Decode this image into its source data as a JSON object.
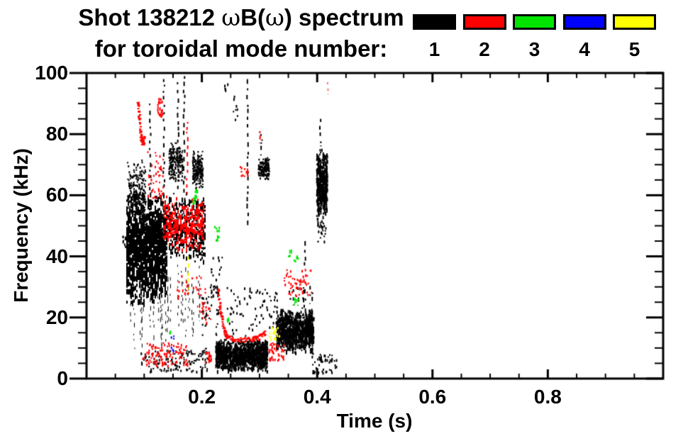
{
  "title": {
    "part1": "Shot 138212 ",
    "omega": "ω",
    "part2": "B(",
    "omega2": "ω",
    "part3": ") spectrum"
  },
  "subtitle": "for toroidal mode number:",
  "legend": {
    "items": [
      {
        "label": "1",
        "color": "#000000"
      },
      {
        "label": "2",
        "color": "#ff0000"
      },
      {
        "label": "3",
        "color": "#00e400"
      },
      {
        "label": "4",
        "color": "#0000ff"
      },
      {
        "label": "5",
        "color": "#ffff00"
      }
    ]
  },
  "chart_data": {
    "type": "scatter",
    "title": "Shot 138212 ωB(ω) spectrum for toroidal mode number: 1 2 3 4 5",
    "xlabel": "Time (s)",
    "ylabel": "Frequency (kHz)",
    "x_range": [
      0.0,
      1.0
    ],
    "y_range": [
      0,
      100
    ],
    "x_ticks": [
      {
        "v": 0.2,
        "label": "0.2"
      },
      {
        "v": 0.4,
        "label": "0.4"
      },
      {
        "v": 0.6,
        "label": "0.6"
      },
      {
        "v": 0.8,
        "label": "0.8"
      }
    ],
    "x_minor_step": 0.05,
    "y_ticks": [
      {
        "v": 0,
        "label": "0"
      },
      {
        "v": 20,
        "label": "20"
      },
      {
        "v": 40,
        "label": "40"
      },
      {
        "v": 60,
        "label": "60"
      },
      {
        "v": 80,
        "label": "80"
      },
      {
        "v": 100,
        "label": "100"
      }
    ],
    "y_minor_step": 5,
    "grid": false,
    "legend_position": "top-right",
    "series": [
      {
        "name": "toroidal mode n=1",
        "color": "#000000",
        "clusters": [
          {
            "type": "streakblob",
            "t": [
              0.068,
              0.138
            ],
            "f": [
              24,
              63
            ],
            "n": 1250,
            "dash": [
              3,
              9
            ]
          },
          {
            "type": "blob",
            "t": [
              0.07,
              0.102
            ],
            "f": [
              48,
              72
            ],
            "n": 260
          },
          {
            "type": "streakblob",
            "t": [
              0.135,
              0.205
            ],
            "f": [
              38,
              62
            ],
            "n": 420,
            "dash": [
              2,
              7
            ]
          },
          {
            "type": "vstreaks",
            "t": [
              0.075,
              0.205
            ],
            "f": [
              8,
              38
            ],
            "k": 26,
            "n": 520,
            "thin": true
          },
          {
            "type": "vstreak",
            "t": 0.109,
            "f": [
              50,
              90
            ],
            "n": 40
          },
          {
            "type": "vstreak",
            "t": 0.133,
            "f": [
              55,
              98
            ],
            "n": 46
          },
          {
            "type": "vstreak",
            "t": 0.1575,
            "f": [
              62,
              97
            ],
            "n": 36
          },
          {
            "type": "vstreak",
            "t": 0.168,
            "f": [
              50,
              99
            ],
            "n": 50
          },
          {
            "type": "vstreak",
            "t": 0.278,
            "f": [
              50,
              98
            ],
            "n": 44
          },
          {
            "type": "blob",
            "t": [
              0.142,
              0.166
            ],
            "f": [
              64,
              78
            ],
            "n": 200
          },
          {
            "type": "blob",
            "t": [
              0.183,
              0.201
            ],
            "f": [
              62,
              75
            ],
            "n": 190
          },
          {
            "type": "blob",
            "t": [
              0.297,
              0.316
            ],
            "f": [
              65,
              73
            ],
            "n": 160
          },
          {
            "type": "vstreak",
            "t": 0.302,
            "f": [
              73,
              80
            ],
            "n": 10
          },
          {
            "type": "dots",
            "t": [
              0.238,
              0.244
            ],
            "f": [
              94,
              97
            ],
            "n": 5
          },
          {
            "type": "dots",
            "t": [
              0.253,
              0.262
            ],
            "f": [
              85,
              93
            ],
            "n": 8
          },
          {
            "type": "blob",
            "t": [
              0.223,
              0.313
            ],
            "f": [
              2.5,
              13.5
            ],
            "n": 1100,
            "elong": true
          },
          {
            "type": "blob",
            "t": [
              0.328,
              0.393
            ],
            "f": [
              8.5,
              23.5
            ],
            "n": 850,
            "elong": true
          },
          {
            "type": "vstreaks",
            "t": [
              0.332,
              0.39
            ],
            "f": [
              23,
              31
            ],
            "k": 8,
            "n": 90
          },
          {
            "type": "dots",
            "t": [
              0.39,
              0.433
            ],
            "f": [
              2,
              8.5
            ],
            "n": 55
          },
          {
            "type": "vstreak",
            "t": 0.384,
            "f": [
              11,
              17.5
            ],
            "n": 14
          },
          {
            "type": "blob",
            "t": [
              0.398,
              0.4165
            ],
            "f": [
              52,
              76
            ],
            "n": 420,
            "elong": true
          },
          {
            "type": "vstreak",
            "t": 0.4045,
            "f": [
              76,
              85
            ],
            "n": 16
          },
          {
            "type": "dots",
            "t": [
              0.4,
              0.414
            ],
            "f": [
              45,
              52
            ],
            "n": 26
          },
          {
            "type": "vstreak",
            "t": 0.378,
            "f": [
              37,
              45
            ],
            "n": 12
          },
          {
            "type": "dots",
            "t": [
              0.062,
              0.074
            ],
            "f": [
              42,
              47
            ],
            "n": 22
          },
          {
            "type": "dots",
            "t": [
              0.085,
              0.21
            ],
            "f": [
              2.5,
              9.5
            ],
            "n": 110
          },
          {
            "type": "dots",
            "t": [
              0.198,
              0.228
            ],
            "f": [
              14,
              31
            ],
            "n": 45
          },
          {
            "type": "dots",
            "t": [
              0.24,
              0.315
            ],
            "f": [
              14,
              30
            ],
            "n": 60
          },
          {
            "type": "dots",
            "t": [
              0.315,
              0.33
            ],
            "f": [
              17,
              30
            ],
            "n": 20
          },
          {
            "type": "curve",
            "pts": [
              [
                0.178,
                4.5
              ],
              [
                0.205,
                9.5
              ]
            ],
            "n": 20,
            "jitter": 0.8
          },
          {
            "type": "dots",
            "t": [
              0.215,
              0.235
            ],
            "f": [
              25,
              40
            ],
            "n": 18
          }
        ]
      },
      {
        "name": "toroidal mode n=2",
        "color": "#ff0000",
        "clusters": [
          {
            "type": "curve",
            "pts": [
              [
                0.0875,
                91
              ],
              [
                0.09,
                86
              ],
              [
                0.0925,
                80
              ],
              [
                0.096,
                77
              ],
              [
                0.0985,
                79
              ]
            ],
            "n": 70,
            "jitter": 1.2
          },
          {
            "type": "dots",
            "t": [
              0.105,
              0.132
            ],
            "f": [
              58,
              75
            ],
            "n": 45
          },
          {
            "type": "dots",
            "t": [
              0.122,
              0.131
            ],
            "f": [
              86,
              92
            ],
            "n": 28
          },
          {
            "type": "streakblob",
            "t": [
              0.132,
              0.202
            ],
            "f": [
              42,
              60
            ],
            "n": 330,
            "dash": [
              2,
              6
            ]
          },
          {
            "type": "vstreak",
            "t": 0.1735,
            "f": [
              60,
              84
            ],
            "n": 22
          },
          {
            "type": "dots",
            "t": [
              0.095,
              0.175
            ],
            "f": [
              4.5,
              12
            ],
            "n": 110
          },
          {
            "type": "dots",
            "t": [
              0.155,
              0.205
            ],
            "f": [
              26,
              34
            ],
            "n": 26
          },
          {
            "type": "curve",
            "pts": [
              [
                0.2265,
                30
              ],
              [
                0.231,
                22
              ],
              [
                0.2365,
                16.5
              ],
              [
                0.243,
                13.5
              ],
              [
                0.26,
                12.8
              ],
              [
                0.285,
                13.0
              ],
              [
                0.298,
                13.6
              ],
              [
                0.308,
                15.3
              ]
            ],
            "n": 150,
            "jitter": 0.8
          },
          {
            "type": "dots",
            "t": [
              0.205,
              0.216
            ],
            "f": [
              5.5,
              9
            ],
            "n": 20
          },
          {
            "type": "dots",
            "t": [
              0.315,
              0.342
            ],
            "f": [
              6,
              12
            ],
            "n": 40
          },
          {
            "type": "dots",
            "t": [
              0.34,
              0.39
            ],
            "f": [
              27,
              36
            ],
            "n": 55
          },
          {
            "type": "vstreak",
            "t": 0.3,
            "f": [
              77,
              81
            ],
            "n": 12
          },
          {
            "type": "dots",
            "t": [
              0.265,
              0.279
            ],
            "f": [
              66,
              70
            ],
            "n": 14
          },
          {
            "type": "vstreak",
            "t": 0.4165,
            "f": [
              93,
              97
            ],
            "n": 8,
            "alpha": 0.55
          },
          {
            "type": "dots",
            "t": [
              0.19,
              0.215
            ],
            "f": [
              18,
              26
            ],
            "n": 18
          }
        ]
      },
      {
        "name": "toroidal mode n=3",
        "color": "#00e400",
        "clusters": [
          {
            "type": "curve",
            "pts": [
              [
                0.1835,
                58
              ],
              [
                0.187,
                60
              ],
              [
                0.19,
                62
              ]
            ],
            "n": 22,
            "jitter": 0.8
          },
          {
            "type": "dots",
            "t": [
              0.221,
              0.229
            ],
            "f": [
              45,
              51
            ],
            "n": 12
          },
          {
            "type": "dots",
            "t": [
              0.243,
              0.248
            ],
            "f": [
              19,
              21.5
            ],
            "n": 5
          },
          {
            "type": "dots",
            "t": [
              0.142,
              0.146
            ],
            "f": [
              14.8,
              15.8
            ],
            "n": 3
          },
          {
            "type": "dots",
            "t": [
              0.347,
              0.356
            ],
            "f": [
              40,
              42.5
            ],
            "n": 6
          },
          {
            "type": "dots",
            "t": [
              0.358,
              0.368
            ],
            "f": [
              38,
              40.5
            ],
            "n": 5
          },
          {
            "type": "dots",
            "t": [
              0.354,
              0.368
            ],
            "f": [
              23,
              27
            ],
            "n": 8
          }
        ]
      },
      {
        "name": "toroidal mode n=4",
        "color": "#0000ff",
        "clusters": [
          {
            "type": "dots",
            "t": [
              0.146,
              0.151
            ],
            "f": [
              13,
              14.8
            ],
            "n": 3
          },
          {
            "type": "dots",
            "t": [
              0.145,
              0.15
            ],
            "f": [
              9.3,
              10.5
            ],
            "n": 3
          }
        ]
      },
      {
        "name": "toroidal mode n=5",
        "color": "#ffff00",
        "clusters": [
          {
            "type": "vstreak",
            "t": 0.1755,
            "f": [
              28,
              40
            ],
            "n": 22
          },
          {
            "type": "dots",
            "t": [
              0.316,
              0.334
            ],
            "f": [
              13,
              17
            ],
            "n": 18
          }
        ]
      }
    ]
  }
}
